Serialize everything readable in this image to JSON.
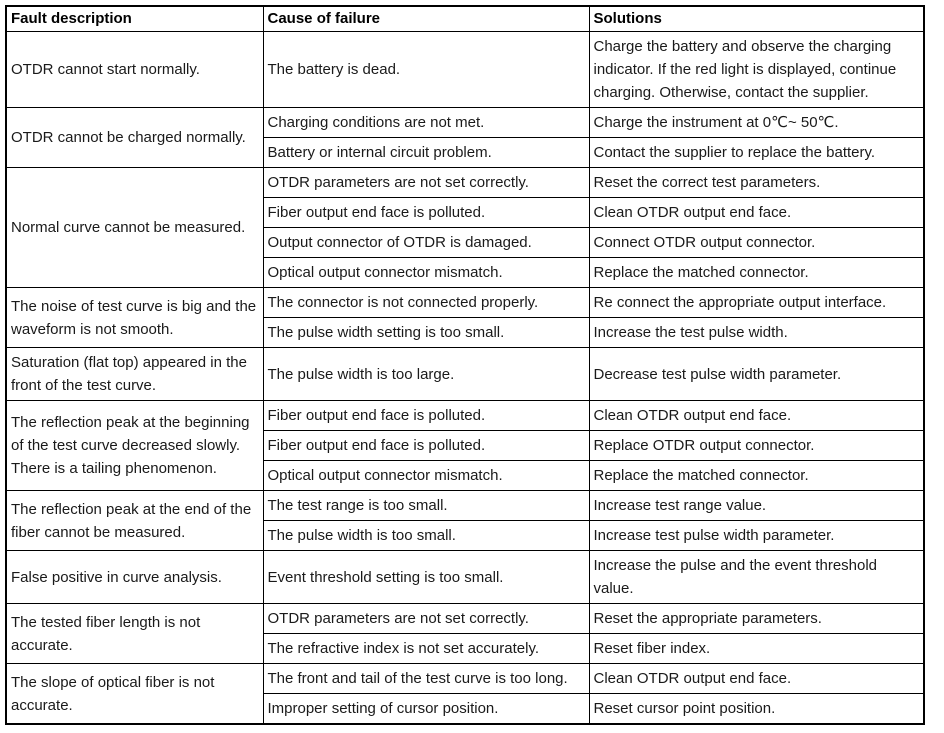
{
  "table": {
    "headers": [
      "Fault description",
      "Cause of failure",
      "Solutions"
    ],
    "groups": [
      {
        "fault": "OTDR cannot start normally.",
        "rows": [
          {
            "cause": "The battery is dead.",
            "solution": "Charge the battery and observe the charging indicator. If the red light is displayed, continue charging. Otherwise, contact the supplier."
          }
        ]
      },
      {
        "fault": "OTDR cannot be charged normally.",
        "rows": [
          {
            "cause": "Charging conditions are not met.",
            "solution": "Charge the instrument at 0℃~ 50℃."
          },
          {
            "cause": "Battery or internal circuit problem.",
            "solution": "Contact the supplier to replace the battery."
          }
        ]
      },
      {
        "fault": "Normal curve cannot be measured.",
        "rows": [
          {
            "cause": "OTDR parameters are not set correctly.",
            "solution": "Reset the correct test parameters."
          },
          {
            "cause": "Fiber output end face is polluted.",
            "solution": "Clean OTDR output end face."
          },
          {
            "cause": "Output connector of OTDR is damaged.",
            "solution": "Connect OTDR output connector."
          },
          {
            "cause": "Optical output connector mismatch.",
            "solution": "Replace the matched connector."
          }
        ]
      },
      {
        "fault": "The noise of test curve is big and the waveform is not smooth.",
        "rows": [
          {
            "cause": "The connector is not connected properly.",
            "solution": "Re connect the appropriate output interface."
          },
          {
            "cause": "The pulse width setting is too small.",
            "solution": "Increase the test pulse width."
          }
        ]
      },
      {
        "fault": "Saturation (flat top) appeared in the front of the test curve.",
        "rows": [
          {
            "cause": "The pulse width is too large.",
            "solution": "Decrease test pulse width parameter."
          }
        ]
      },
      {
        "fault": "The reflection peak at the beginning of the test curve decreased slowly. There is a tailing phenomenon.",
        "rows": [
          {
            "cause": "Fiber output end face is polluted.",
            "solution": "Clean OTDR output end face."
          },
          {
            "cause": "Fiber output end face is polluted.",
            "solution": "Replace OTDR output connector."
          },
          {
            "cause": "Optical output connector mismatch.",
            "solution": "Replace the matched connector."
          }
        ]
      },
      {
        "fault": "The reflection peak at the end of the fiber cannot be measured.",
        "rows": [
          {
            "cause": "The test range is too small.",
            "solution": "Increase test range value."
          },
          {
            "cause": "The pulse width is too small.",
            "solution": "Increase test pulse width parameter."
          }
        ]
      },
      {
        "fault": "False positive in curve analysis.",
        "rows": [
          {
            "cause": "Event threshold setting is too small.",
            "solution": "Increase the pulse and the event threshold value."
          }
        ]
      },
      {
        "fault": "The tested fiber length is not accurate.",
        "rows": [
          {
            "cause": "OTDR parameters are not set correctly.",
            "solution": "Reset the appropriate parameters."
          },
          {
            "cause": "The refractive index is not set accurately.",
            "solution": "Reset fiber index."
          }
        ]
      },
      {
        "fault": "The slope of optical fiber is not accurate.",
        "rows": [
          {
            "cause": "The front and tail of the test curve is too long.",
            "solution": "Clean OTDR output end face."
          },
          {
            "cause": "Improper setting of cursor position.",
            "solution": "Reset cursor point position."
          }
        ]
      }
    ]
  }
}
